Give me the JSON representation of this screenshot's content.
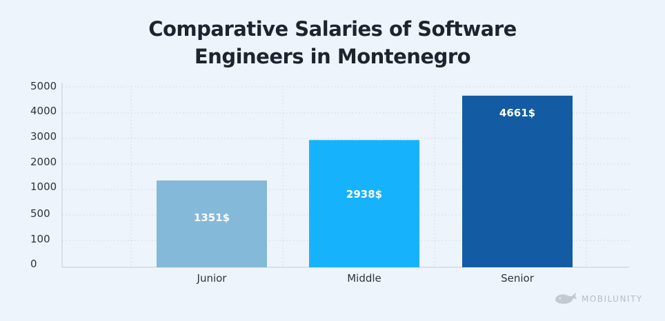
{
  "chart_data": {
    "type": "bar",
    "title": [
      "Comparative Salaries of Software",
      "Engineers in Montenegro"
    ],
    "categories": [
      "Junior",
      "Middle",
      "Senior"
    ],
    "values": [
      1351,
      2938,
      4661
    ],
    "value_labels": [
      "1351$",
      "2938$",
      "4661$"
    ],
    "bar_colors": [
      "#84b9d9",
      "#17b2fc",
      "#135ba2"
    ],
    "y_ticks": [
      "0",
      "100",
      "500",
      "1000",
      "2000",
      "3000",
      "4000",
      "5000"
    ],
    "xlabel": "",
    "ylabel": "",
    "grid": true
  },
  "watermark": {
    "text": "MOBILUNITY",
    "icon": "whale-icon"
  }
}
